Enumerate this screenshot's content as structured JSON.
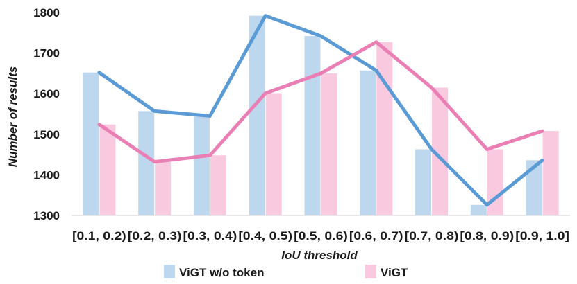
{
  "chart_data": {
    "type": "bar",
    "categories": [
      "[0.1, 0.2)",
      "[0.2, 0.3)",
      "[0.3, 0.4)",
      "[0.4, 0.5)",
      "[0.5, 0.6)",
      "[0.6, 0.7)",
      "[0.7, 0.8)",
      "[0.8, 0.9)",
      "[0.9, 1.0]"
    ],
    "series": [
      {
        "name": "ViGT w/o token",
        "color": "#bdd7ee",
        "line_color": "#5b9bd5",
        "values": [
          1652,
          1557,
          1545,
          1792,
          1742,
          1657,
          1463,
          1326,
          1436
        ]
      },
      {
        "name": "ViGT",
        "color": "#f9c9df",
        "line_color": "#ea7fb5",
        "values": [
          1524,
          1432,
          1448,
          1601,
          1650,
          1727,
          1615,
          1463,
          1508
        ]
      }
    ],
    "title": "",
    "xlabel": "IoU threshold",
    "ylabel": "Number of results",
    "ylim": [
      1300,
      1800
    ],
    "yticks": [
      1300,
      1400,
      1500,
      1600,
      1700,
      1800
    ],
    "grid": false,
    "legend": "bottom"
  }
}
